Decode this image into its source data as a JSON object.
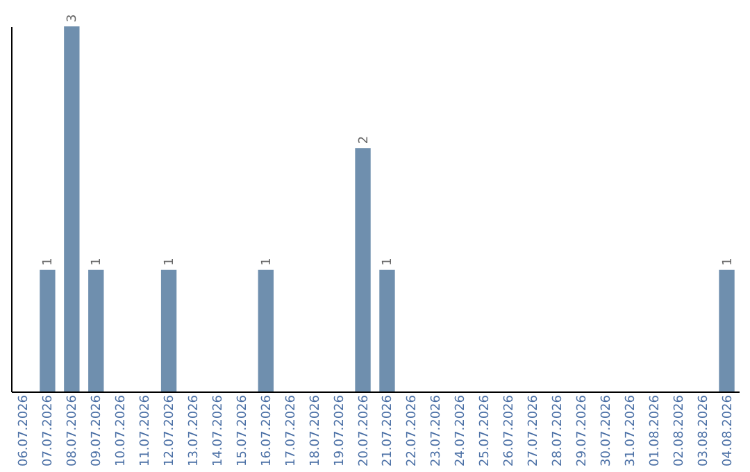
{
  "chart_data": {
    "type": "bar",
    "categories": [
      "06.07.2026",
      "07.07.2026",
      "08.07.2026",
      "09.07.2026",
      "10.07.2026",
      "11.07.2026",
      "12.07.2026",
      "13.07.2026",
      "14.07.2026",
      "15.07.2026",
      "16.07.2026",
      "17.07.2026",
      "18.07.2026",
      "19.07.2026",
      "20.07.2026",
      "21.07.2026",
      "22.07.2026",
      "23.07.2026",
      "24.07.2026",
      "25.07.2026",
      "26.07.2026",
      "27.07.2026",
      "28.07.2026",
      "29.07.2026",
      "30.07.2026",
      "31.07.2026",
      "01.08.2026",
      "02.08.2026",
      "03.08.2026",
      "04.08.2026"
    ],
    "values": [
      0,
      1,
      3,
      1,
      0,
      0,
      1,
      0,
      0,
      0,
      1,
      0,
      0,
      0,
      2,
      1,
      0,
      0,
      0,
      0,
      0,
      0,
      0,
      0,
      0,
      0,
      0,
      0,
      0,
      1
    ],
    "value_labels": [
      null,
      "1",
      "3",
      "1",
      null,
      null,
      "1",
      null,
      null,
      null,
      "1",
      null,
      null,
      null,
      "2",
      "1",
      null,
      null,
      null,
      null,
      null,
      null,
      null,
      null,
      null,
      null,
      null,
      null,
      null,
      "1"
    ],
    "color": "#6f8fae",
    "tick_labels": "x",
    "grid": false
  }
}
